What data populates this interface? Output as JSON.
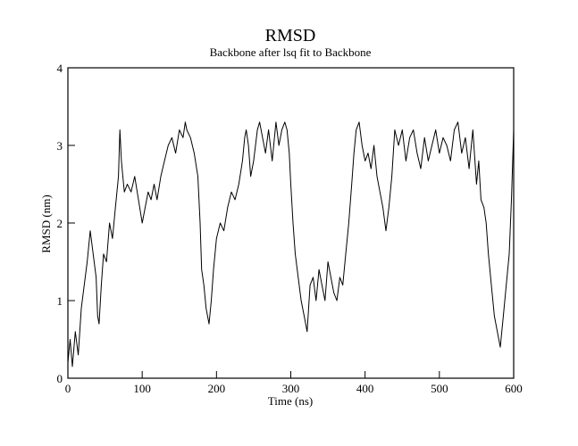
{
  "chart_data": {
    "type": "line",
    "title": "RMSD",
    "subtitle": "Backbone after lsq fit to Backbone",
    "xlabel": "Time (ns)",
    "ylabel": "RMSD (nm)",
    "xlim": [
      0,
      600
    ],
    "ylim": [
      0,
      4
    ],
    "xticks": [
      0,
      100,
      200,
      300,
      400,
      500,
      600
    ],
    "yticks": [
      0,
      1,
      2,
      3,
      4
    ],
    "xtick_labels": [
      "0",
      "100",
      "200",
      "300",
      "400",
      "500",
      "600"
    ],
    "ytick_labels": [
      "0",
      "1",
      "2",
      "3",
      "4"
    ],
    "grid": false,
    "series": [
      {
        "color": "#000000",
        "x": [
          0,
          3,
          6,
          10,
          14,
          18,
          22,
          26,
          30,
          34,
          38,
          40,
          42,
          45,
          48,
          52,
          56,
          60,
          64,
          68,
          70,
          72,
          74,
          76,
          80,
          85,
          90,
          95,
          100,
          104,
          108,
          112,
          116,
          120,
          125,
          130,
          135,
          140,
          145,
          150,
          155,
          158,
          160,
          165,
          170,
          175,
          178,
          180,
          183,
          186,
          190,
          193,
          196,
          200,
          205,
          210,
          215,
          220,
          225,
          230,
          235,
          238,
          240,
          243,
          246,
          250,
          255,
          258,
          262,
          266,
          270,
          275,
          280,
          284,
          288,
          292,
          295,
          298,
          300,
          303,
          306,
          310,
          314,
          318,
          322,
          326,
          330,
          334,
          338,
          342,
          346,
          350,
          354,
          358,
          362,
          366,
          370,
          374,
          378,
          382,
          385,
          388,
          392,
          396,
          400,
          404,
          408,
          412,
          416,
          420,
          424,
          428,
          432,
          436,
          440,
          445,
          450,
          455,
          460,
          465,
          470,
          475,
          480,
          485,
          490,
          495,
          500,
          505,
          510,
          515,
          520,
          525,
          530,
          535,
          540,
          545,
          550,
          553,
          556,
          560,
          563,
          566,
          570,
          574,
          578,
          582,
          586,
          590,
          594,
          597,
          600
        ],
        "y": [
          0.2,
          0.5,
          0.15,
          0.6,
          0.3,
          0.9,
          1.2,
          1.5,
          1.9,
          1.6,
          1.3,
          0.8,
          0.7,
          1.2,
          1.6,
          1.5,
          2.0,
          1.8,
          2.2,
          2.6,
          3.2,
          2.8,
          2.6,
          2.4,
          2.5,
          2.4,
          2.6,
          2.3,
          2.0,
          2.2,
          2.4,
          2.3,
          2.5,
          2.3,
          2.6,
          2.8,
          3.0,
          3.1,
          2.9,
          3.2,
          3.1,
          3.3,
          3.2,
          3.1,
          2.9,
          2.6,
          2.0,
          1.4,
          1.2,
          0.9,
          0.7,
          1.0,
          1.4,
          1.8,
          2.0,
          1.9,
          2.2,
          2.4,
          2.3,
          2.5,
          2.8,
          3.1,
          3.2,
          3.0,
          2.6,
          2.8,
          3.2,
          3.3,
          3.1,
          2.9,
          3.2,
          2.8,
          3.3,
          3.0,
          3.2,
          3.3,
          3.2,
          2.9,
          2.5,
          2.0,
          1.6,
          1.3,
          1.0,
          0.8,
          0.6,
          1.2,
          1.3,
          1.0,
          1.4,
          1.2,
          1.0,
          1.5,
          1.3,
          1.1,
          1.0,
          1.3,
          1.2,
          1.6,
          2.0,
          2.5,
          2.9,
          3.2,
          3.3,
          3.0,
          2.8,
          2.9,
          2.7,
          3.0,
          2.6,
          2.4,
          2.2,
          1.9,
          2.2,
          2.6,
          3.2,
          3.0,
          3.2,
          2.8,
          3.1,
          3.2,
          2.9,
          2.7,
          3.1,
          2.8,
          3.0,
          3.2,
          2.9,
          3.1,
          3.0,
          2.8,
          3.2,
          3.3,
          2.9,
          3.1,
          2.7,
          3.2,
          2.5,
          2.8,
          2.3,
          2.2,
          2.0,
          1.6,
          1.2,
          0.8,
          0.6,
          0.4,
          0.8,
          1.2,
          1.6,
          2.3,
          3.2
        ]
      }
    ]
  }
}
